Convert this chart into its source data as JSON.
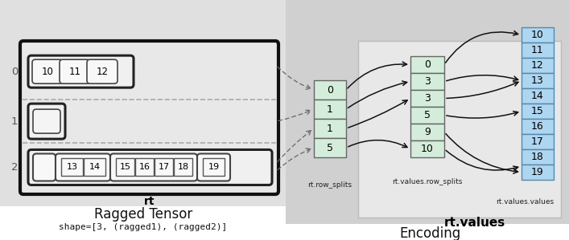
{
  "title_left": "Ragged Tensor",
  "subtitle_left": "shape=[3, (ragged1), (ragged2)]",
  "title_right": "Encoding",
  "rt_label": "rt",
  "rt_values_label": "rt.values",
  "row_splits_label": "rt.row_splits",
  "values_row_splits_label": "rt.values.row_splits",
  "values_values_label": "rt.values.values",
  "rt_row_splits": [
    "0",
    "1",
    "1",
    "5"
  ],
  "rt_values_row_splits": [
    "0",
    "3",
    "3",
    "5",
    "9",
    "10"
  ],
  "rt_values_values": [
    "10",
    "11",
    "12",
    "13",
    "14",
    "15",
    "16",
    "17",
    "18",
    "19"
  ],
  "bg_left_top": "#f0f0f0",
  "bg_left_bot": "#c8c8c8",
  "bg_right": "#d8d8d8",
  "cell_green": "#d4edda",
  "cell_blue_light": "#d6eaf8",
  "cell_blue": "#aed6f1",
  "border_dark": "#111111",
  "border_med": "#333333",
  "dashed_color": "#aaaaaa"
}
